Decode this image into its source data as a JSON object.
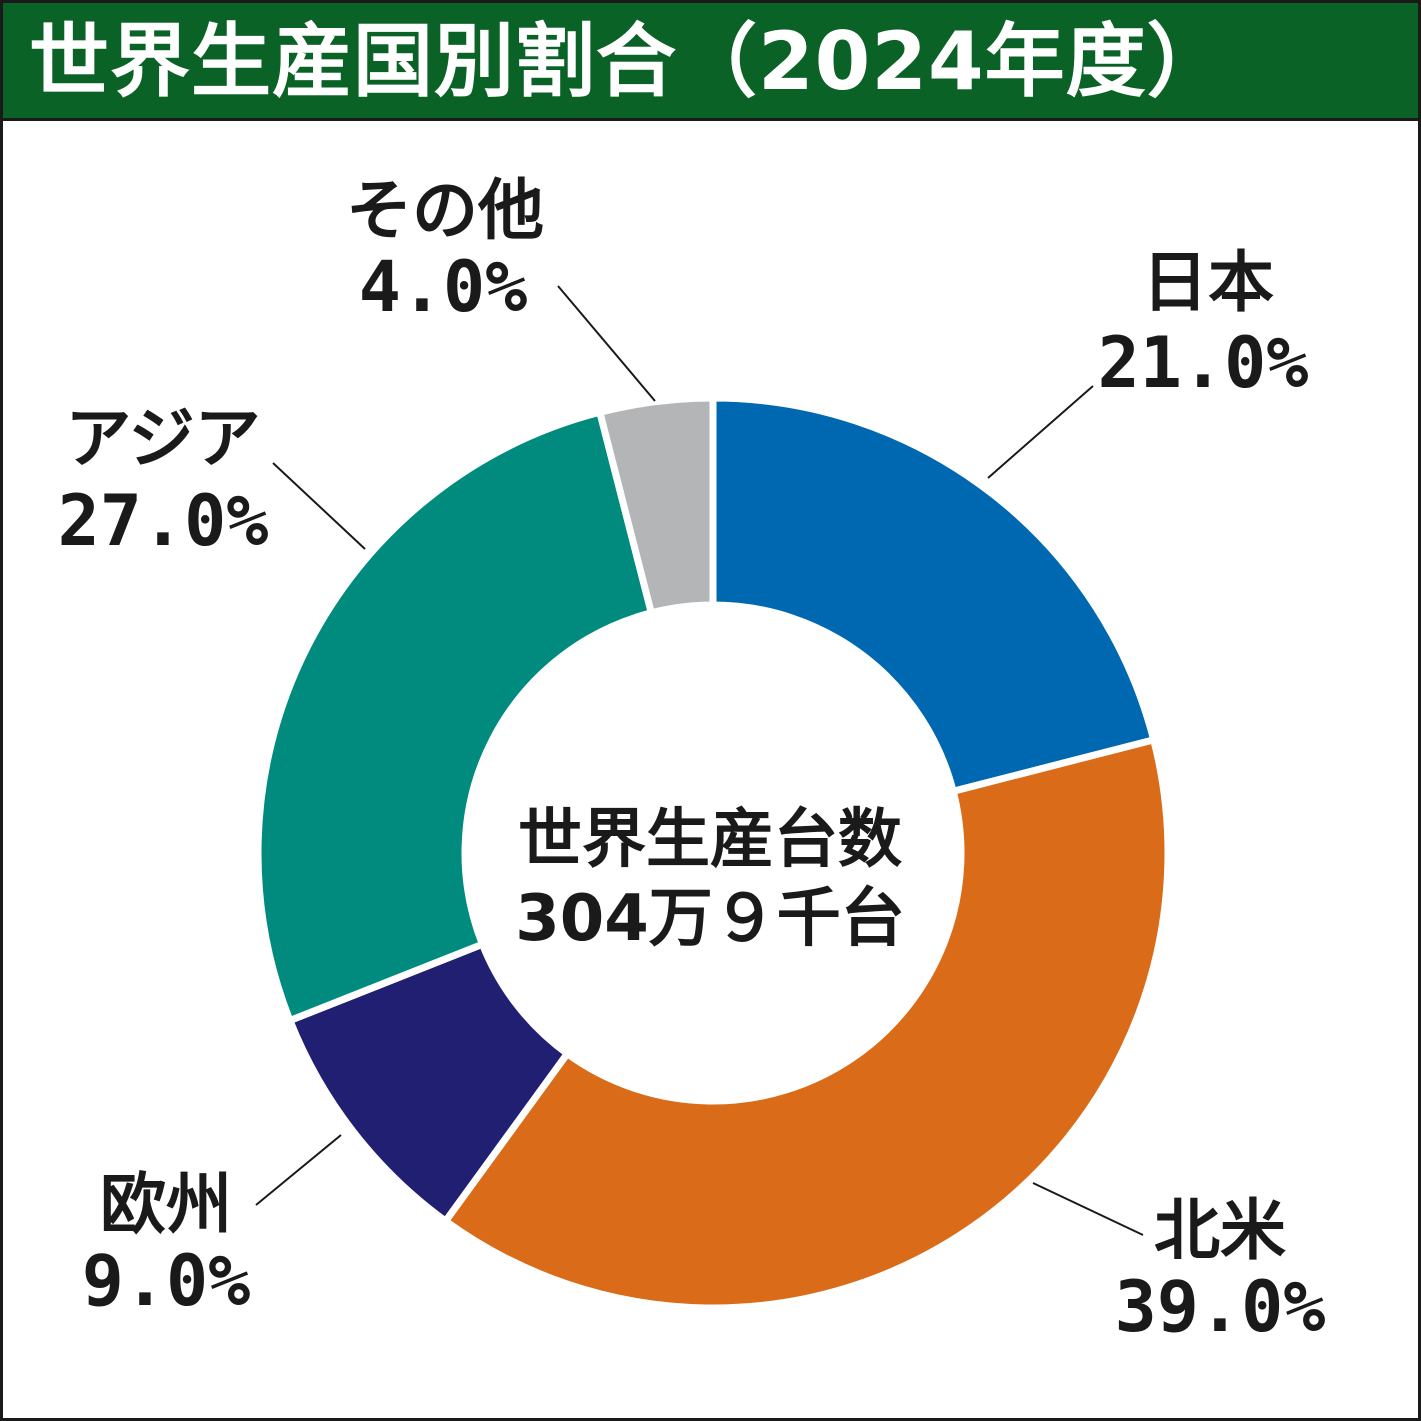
{
  "chart_data": {
    "type": "pie",
    "variant": "donut",
    "title": "世界生産国別割合（2024年度）",
    "center_label": [
      "世界生産台数",
      "304万９千台"
    ],
    "order": "clockwise from top",
    "slices": [
      {
        "label": "日本",
        "value": 21.0,
        "value_label": "21.0%",
        "color": "#0068b1"
      },
      {
        "label": "北米",
        "value": 39.0,
        "value_label": "39.0%",
        "color": "#d96b19"
      },
      {
        "label": "欧州",
        "value": 9.0,
        "value_label": "9.0%",
        "color": "#211f72"
      },
      {
        "label": "アジア",
        "value": 27.0,
        "value_label": "27.0%",
        "color": "#008b7f"
      },
      {
        "label": "その他",
        "value": 4.0,
        "value_label": "4.0%",
        "color": "#b4b5b7"
      }
    ]
  },
  "colors": {
    "title_bar": "#0b6227",
    "title_text": "#ffffff",
    "label_text": "#1a1a1a",
    "separator": "#ffffff"
  }
}
